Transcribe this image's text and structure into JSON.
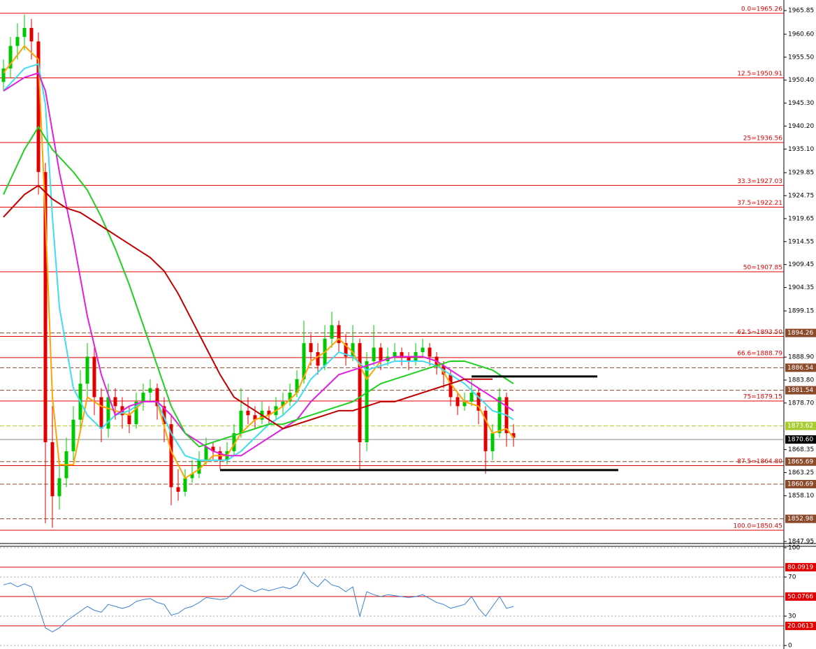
{
  "chart_data": [
    {
      "type": "candlestick",
      "up_color": "#00c800",
      "down_color": "#e00000",
      "candles": [
        [
          1950,
          1955,
          1948,
          1953
        ],
        [
          1953,
          1960,
          1951,
          1958
        ],
        [
          1958,
          1963,
          1955,
          1960
        ],
        [
          1960,
          1965,
          1957,
          1962
        ],
        [
          1962,
          1964,
          1955,
          1959
        ],
        [
          1959,
          1961,
          1925,
          1930
        ],
        [
          1930,
          1932,
          1852,
          1870
        ],
        [
          1870,
          1878,
          1851,
          1858
        ],
        [
          1858,
          1866,
          1855,
          1862
        ],
        [
          1862,
          1871,
          1860,
          1868
        ],
        [
          1868,
          1878,
          1866,
          1875
        ],
        [
          1875,
          1886,
          1873,
          1883
        ],
        [
          1883,
          1892,
          1880,
          1889
        ],
        [
          1889,
          1891,
          1876,
          1880
        ],
        [
          1880,
          1882,
          1870,
          1873
        ],
        [
          1873,
          1883,
          1871,
          1880
        ],
        [
          1880,
          1882,
          1875,
          1878
        ],
        [
          1878,
          1880,
          1873,
          1876
        ],
        [
          1876,
          1878,
          1872,
          1874
        ],
        [
          1874,
          1881,
          1873,
          1879
        ],
        [
          1879,
          1883,
          1877,
          1881
        ],
        [
          1881,
          1884,
          1879,
          1882
        ],
        [
          1882,
          1883,
          1875,
          1878
        ],
        [
          1878,
          1880,
          1870,
          1874
        ],
        [
          1874,
          1876,
          1856,
          1860
        ],
        [
          1860,
          1864,
          1857,
          1859
        ],
        [
          1859,
          1864,
          1858,
          1862
        ],
        [
          1862,
          1866,
          1861,
          1863
        ],
        [
          1863,
          1868,
          1862,
          1866
        ],
        [
          1866,
          1871,
          1865,
          1869
        ],
        [
          1869,
          1870,
          1866,
          1868
        ],
        [
          1868,
          1869,
          1864,
          1866
        ],
        [
          1866,
          1870,
          1865,
          1868
        ],
        [
          1868,
          1874,
          1867,
          1872
        ],
        [
          1872,
          1882,
          1871,
          1877
        ],
        [
          1877,
          1880,
          1874,
          1876
        ],
        [
          1876,
          1878,
          1873,
          1875
        ],
        [
          1875,
          1879,
          1874,
          1877
        ],
        [
          1877,
          1878,
          1874,
          1876
        ],
        [
          1876,
          1880,
          1875,
          1878
        ],
        [
          1878,
          1881,
          1876,
          1879
        ],
        [
          1879,
          1883,
          1878,
          1881
        ],
        [
          1881,
          1886,
          1880,
          1884
        ],
        [
          1884,
          1897,
          1883,
          1892
        ],
        [
          1892,
          1894,
          1887,
          1890
        ],
        [
          1890,
          1892,
          1885,
          1887
        ],
        [
          1887,
          1896,
          1886,
          1893
        ],
        [
          1893,
          1899,
          1891,
          1896
        ],
        [
          1896,
          1897,
          1890,
          1892
        ],
        [
          1892,
          1894,
          1887,
          1889
        ],
        [
          1889,
          1896,
          1888,
          1892
        ],
        [
          1892,
          1893,
          1864,
          1870
        ],
        [
          1870,
          1890,
          1868,
          1888
        ],
        [
          1888,
          1896,
          1887,
          1891
        ],
        [
          1891,
          1892,
          1886,
          1888
        ],
        [
          1888,
          1891,
          1887,
          1889
        ],
        [
          1889,
          1892,
          1888,
          1890
        ],
        [
          1890,
          1891,
          1887,
          1889
        ],
        [
          1889,
          1890,
          1886,
          1888
        ],
        [
          1888,
          1892,
          1887,
          1890
        ],
        [
          1890,
          1893,
          1889,
          1891
        ],
        [
          1891,
          1892,
          1887,
          1889
        ],
        [
          1889,
          1890,
          1885,
          1887
        ],
        [
          1887,
          1888,
          1882,
          1885
        ],
        [
          1885,
          1886,
          1878,
          1880
        ],
        [
          1880,
          1881,
          1876,
          1878
        ],
        [
          1878,
          1881,
          1877,
          1879
        ],
        [
          1879,
          1884,
          1878,
          1881
        ],
        [
          1881,
          1882,
          1874,
          1877
        ],
        [
          1877,
          1878,
          1863,
          1868
        ],
        [
          1868,
          1874,
          1866,
          1872
        ],
        [
          1872,
          1882,
          1871,
          1880
        ],
        [
          1880,
          1881,
          1869,
          1872
        ],
        [
          1872,
          1874,
          1869,
          1871
        ]
      ],
      "ylim": [
        1847.5,
        1968.2
      ],
      "yticks": [
        1965.85,
        {
          "value": 1960.6,
          "label": "1960.60"
        },
        {
          "value": 1955.5,
          "label": "1955.50"
        },
        {
          "value": 1950.4,
          "label": "1950.40"
        },
        {
          "value": 1945.3,
          "label": "1945.30"
        },
        {
          "value": 1940.2,
          "label": "1940.20"
        },
        {
          "value": 1935.1,
          "label": "1935.10"
        },
        1929.85,
        1924.75,
        1919.65,
        1914.55,
        1909.45,
        1904.35,
        1899.15,
        {
          "value": 1888.9,
          "label": "1888.90"
        },
        {
          "value": 1883.8,
          "label": "1883.80"
        },
        {
          "value": 1878.7,
          "label": "1878.70"
        },
        1868.35,
        1863.25,
        {
          "value": 1858.1,
          "label": "1858.10"
        },
        1847.95
      ],
      "series": [
        {
          "color": "#ffa500",
          "x": [
            0,
            3,
            5,
            6,
            7,
            8,
            10,
            12,
            14,
            16,
            18,
            20,
            22,
            24,
            26,
            28,
            30,
            32,
            34,
            36,
            38,
            40,
            42,
            44,
            46,
            48,
            50,
            52,
            54,
            56,
            58,
            60,
            62,
            64,
            66,
            68,
            70,
            72,
            73
          ],
          "values": [
            1952,
            1958,
            1955,
            1920,
            1880,
            1865,
            1865,
            1880,
            1878,
            1877,
            1876,
            1879,
            1879,
            1868,
            1862,
            1864,
            1867,
            1867,
            1872,
            1875,
            1876,
            1878,
            1881,
            1888,
            1890,
            1893,
            1890,
            1884,
            1888,
            1889,
            1889,
            1889,
            1888,
            1883,
            1879,
            1878,
            1872,
            1873,
            1871
          ]
        },
        {
          "color": "#40dcf0",
          "x": [
            0,
            3,
            5,
            6,
            7,
            8,
            10,
            12,
            14,
            16,
            18,
            20,
            22,
            24,
            26,
            28,
            30,
            32,
            34,
            36,
            38,
            40,
            42,
            44,
            46,
            48,
            50,
            52,
            54,
            56,
            58,
            60,
            62,
            64,
            66,
            68,
            70,
            72,
            73
          ],
          "values": [
            1948,
            1953,
            1954,
            1945,
            1920,
            1900,
            1882,
            1876,
            1873,
            1876,
            1877,
            1879,
            1879,
            1872,
            1867,
            1866,
            1866,
            1866,
            1868,
            1871,
            1874,
            1876,
            1879,
            1884,
            1887,
            1890,
            1889,
            1886,
            1887,
            1888,
            1888,
            1888,
            1887,
            1885,
            1883,
            1880,
            1877,
            1876,
            1875
          ]
        },
        {
          "color": "#e020e0",
          "x": [
            0,
            3,
            5,
            6,
            8,
            10,
            12,
            14,
            16,
            18,
            20,
            22,
            24,
            26,
            28,
            30,
            32,
            34,
            36,
            38,
            40,
            42,
            44,
            46,
            48,
            50,
            52,
            54,
            56,
            58,
            60,
            62,
            64,
            66,
            68,
            70,
            72,
            73
          ],
          "values": [
            1948,
            1951,
            1952,
            1948,
            1930,
            1915,
            1898,
            1885,
            1876,
            1878,
            1879,
            1879,
            1876,
            1872,
            1870,
            1868,
            1867,
            1867,
            1869,
            1871,
            1873,
            1875,
            1879,
            1882,
            1885,
            1886,
            1887,
            1888,
            1889,
            1889,
            1889,
            1888,
            1886,
            1884,
            1882,
            1880,
            1878,
            1877
          ]
        },
        {
          "color": "#20d020",
          "x": [
            0,
            3,
            5,
            7,
            10,
            12,
            14,
            16,
            18,
            20,
            22,
            24,
            26,
            28,
            30,
            32,
            34,
            36,
            38,
            40,
            42,
            44,
            46,
            48,
            50,
            52,
            54,
            56,
            58,
            60,
            62,
            64,
            66,
            68,
            70,
            72,
            73
          ],
          "values": [
            1925,
            1935,
            1940,
            1935,
            1930,
            1926,
            1920,
            1913,
            1905,
            1896,
            1887,
            1878,
            1872,
            1869,
            1870,
            1871,
            1872,
            1873,
            1874,
            1874,
            1875,
            1876,
            1877,
            1878,
            1879,
            1881,
            1883,
            1884,
            1885,
            1886,
            1887,
            1888,
            1888,
            1887,
            1886,
            1884,
            1883
          ]
        },
        {
          "color": "#c00000",
          "x": [
            0,
            3,
            5,
            7,
            9,
            11,
            13,
            15,
            17,
            19,
            21,
            23,
            25,
            27,
            29,
            31,
            33,
            35,
            37,
            39,
            40,
            42,
            44,
            46,
            48,
            50,
            52,
            54,
            56,
            58,
            60,
            62,
            64,
            66,
            68,
            70
          ],
          "values": [
            1920,
            1925,
            1927,
            1924,
            1922,
            1921,
            1919,
            1917,
            1915,
            1913,
            1911,
            1908,
            1903,
            1897,
            1891,
            1885,
            1880,
            1878,
            1876,
            1874,
            1873,
            1874,
            1875,
            1876,
            1877,
            1877,
            1878,
            1879,
            1879,
            1880,
            1881,
            1882,
            1883,
            1884,
            1884,
            1884
          ]
        }
      ],
      "fib_levels": [
        {
          "value": 1965.26,
          "label": "0.0=1965.26"
        },
        {
          "value": 1950.91,
          "label": "12.5=1950.91"
        },
        {
          "value": 1936.56,
          "label": "25=1936.56"
        },
        {
          "value": 1927.03,
          "label": "33.3=1927.03"
        },
        {
          "value": 1922.21,
          "label": "37.5=1922.21"
        },
        {
          "value": 1907.85,
          "label": "50=1907.85"
        },
        {
          "value": 1893.5,
          "label": "62.5=1893.50"
        },
        {
          "value": 1888.79,
          "label": "66.6=1888.79"
        },
        {
          "value": 1879.15,
          "label": "75=1879.15"
        },
        {
          "value": 1864.8,
          "label": "87.5=1864.80"
        },
        {
          "value": 1850.45,
          "label": "100.0=1850.45"
        }
      ],
      "fib_color": "#e00000",
      "price_labels": [
        {
          "value": 1894.26,
          "color": "#8b4a2b"
        },
        {
          "value": 1886.54,
          "color": "#8b4a2b"
        },
        {
          "value": 1881.54,
          "color": "#8b4a2b"
        },
        {
          "value": 1873.62,
          "color": "#a8cc30"
        },
        {
          "value": 1870.6,
          "label": "1870.60",
          "color": "#000000"
        },
        {
          "value": 1865.69,
          "color": "#8b4a2b"
        },
        {
          "value": 1860.69,
          "color": "#8b4a2b"
        },
        {
          "value": 1852.98,
          "color": "#8b4a2b"
        }
      ],
      "trendlines": [
        {
          "x": [
            31,
            88
          ],
          "y": [
            1863.8,
            1863.8
          ]
        },
        {
          "x": [
            67,
            85
          ],
          "y": [
            1884.6,
            1884.6
          ]
        }
      ]
    },
    {
      "type": "line",
      "ylim": [
        0,
        100
      ],
      "yticks": [
        100,
        70,
        30,
        0
      ],
      "grid": true,
      "series": [
        {
          "color": "#3a7fd5",
          "values": [
            62,
            64,
            60,
            63,
            60,
            40,
            18,
            14,
            18,
            25,
            30,
            35,
            40,
            36,
            34,
            42,
            40,
            38,
            40,
            45,
            47,
            48,
            44,
            42,
            31,
            33,
            38,
            40,
            44,
            49,
            48,
            47,
            48,
            55,
            62,
            58,
            55,
            58,
            56,
            58,
            60,
            58,
            62,
            75,
            65,
            60,
            68,
            62,
            60,
            55,
            60,
            30,
            55,
            52,
            50,
            52,
            51,
            50,
            49,
            50,
            52,
            48,
            44,
            42,
            38,
            40,
            42,
            50,
            38,
            30,
            40,
            50,
            38,
            40
          ]
        }
      ],
      "levels": [
        {
          "value": 80.0919,
          "color": "#e00000"
        },
        {
          "value": 50.0766,
          "color": "#e00000"
        },
        {
          "value": 20.0613,
          "color": "#e00000"
        }
      ]
    }
  ]
}
